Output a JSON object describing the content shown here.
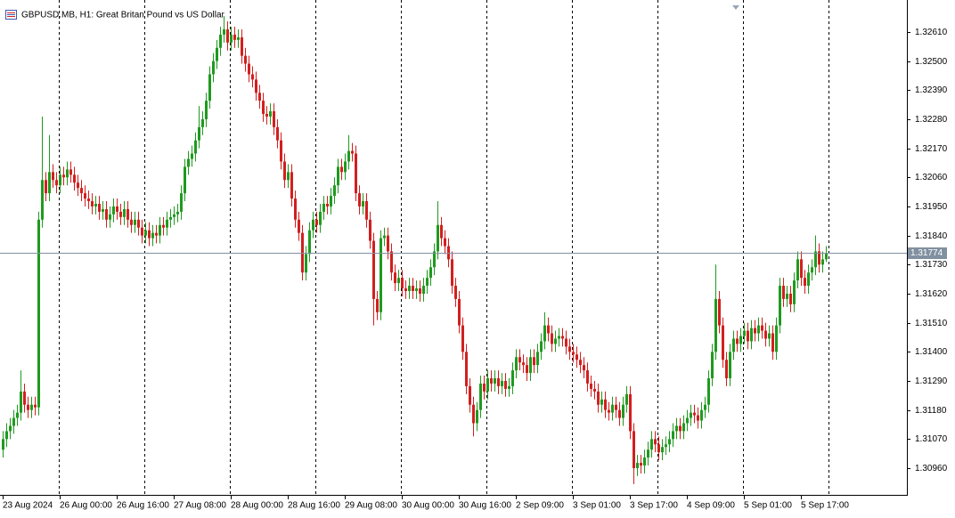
{
  "chart_data": {
    "type": "candlestick",
    "title": "GBPUSD.MB, H1:  Great Britan Pound vs US Dollar",
    "categories": [
      "23 Aug 2024",
      null,
      null,
      null,
      null,
      null,
      null,
      null,
      null,
      null,
      null,
      null,
      null,
      null,
      null,
      null,
      "26 Aug 00:00",
      null,
      null,
      null,
      null,
      null,
      null,
      null,
      null,
      null,
      null,
      null,
      null,
      null,
      null,
      null,
      "26 Aug 16:00",
      null,
      null,
      null,
      null,
      null,
      null,
      null,
      null,
      null,
      null,
      null,
      null,
      null,
      null,
      null,
      "27 Aug 08:00",
      null,
      null,
      null,
      null,
      null,
      null,
      null,
      null,
      null,
      null,
      null,
      null,
      null,
      null,
      null,
      "28 Aug 00:00",
      null,
      null,
      null,
      null,
      null,
      null,
      null,
      null,
      null,
      null,
      null,
      null,
      null,
      null,
      null,
      "28 Aug 16:00",
      null,
      null,
      null,
      null,
      null,
      null,
      null,
      null,
      null,
      null,
      null,
      null,
      null,
      null,
      null,
      "29 Aug 08:00",
      null,
      null,
      null,
      null,
      null,
      null,
      null,
      null,
      null,
      null,
      null,
      null,
      null,
      null,
      null,
      "30 Aug 00:00",
      null,
      null,
      null,
      null,
      null,
      null,
      null,
      null,
      null,
      null,
      null,
      null,
      null,
      null,
      null,
      "30 Aug 16:00",
      null,
      null,
      null,
      null,
      null,
      null,
      null,
      null,
      null,
      null,
      null,
      null,
      null,
      null,
      null,
      "2 Sep 09:00",
      null,
      null,
      null,
      null,
      null,
      null,
      null,
      null,
      null,
      null,
      null,
      null,
      null,
      null,
      null,
      "3 Sep 01:00",
      null,
      null,
      null,
      null,
      null,
      null,
      null,
      null,
      null,
      null,
      null,
      null,
      null,
      null,
      null,
      "3 Sep 17:00",
      null,
      null,
      null,
      null,
      null,
      null,
      null,
      null,
      null,
      null,
      null,
      null,
      null,
      null,
      null,
      "4 Sep 09:00",
      null,
      null,
      null,
      null,
      null,
      null,
      null,
      null,
      null,
      null,
      null,
      null,
      null,
      null,
      null,
      "5 Sep 01:00",
      null,
      null,
      null,
      null,
      null,
      null,
      null,
      null,
      null,
      null,
      null,
      null,
      null,
      null,
      null,
      "5 Sep 17:00",
      null,
      null,
      null,
      null,
      null,
      null,
      null
    ],
    "open": [
      1.3103,
      1.3107,
      1.311,
      1.3112,
      1.3115,
      1.3117,
      1.3125,
      1.312,
      1.3118,
      1.312,
      1.3119,
      1.319,
      1.3205,
      1.32,
      1.3208,
      1.3205,
      1.3203,
      1.3207,
      1.3206,
      1.3209,
      1.3207,
      1.3204,
      1.3202,
      1.32,
      1.3198,
      1.3197,
      1.3195,
      1.3196,
      1.3193,
      1.3194,
      1.319,
      1.3192,
      1.3195,
      1.3193,
      1.3191,
      1.3194,
      1.319,
      1.3188,
      1.319,
      1.3187,
      1.3184,
      1.3186,
      1.3183,
      1.3185,
      1.3184,
      1.3188,
      1.3187,
      1.319,
      1.3191,
      1.3192,
      1.3193,
      1.32,
      1.321,
      1.3213,
      1.3215,
      1.322,
      1.3225,
      1.3228,
      1.3235,
      1.3245,
      1.325,
      1.3255,
      1.326,
      1.3262,
      1.3257,
      1.326,
      1.3258,
      1.3259,
      1.3252,
      1.3249,
      1.3245,
      1.3243,
      1.3238,
      1.3235,
      1.323,
      1.3229,
      1.3231,
      1.3225,
      1.322,
      1.3212,
      1.3205,
      1.3208,
      1.3198,
      1.319,
      1.3185,
      1.317,
      1.3177,
      1.3186,
      1.319,
      1.3188,
      1.3193,
      1.3196,
      1.3195,
      1.3199,
      1.3203,
      1.321,
      1.3208,
      1.3212,
      1.3216,
      1.3215,
      1.32,
      1.3195,
      1.3197,
      1.319,
      1.3182,
      1.316,
      1.3155,
      1.3183,
      1.3184,
      1.3178,
      1.317,
      1.3166,
      1.3168,
      1.3164,
      1.3163,
      1.3165,
      1.3163,
      1.3164,
      1.3162,
      1.3165,
      1.3168,
      1.3172,
      1.3178,
      1.3188,
      1.3183,
      1.318,
      1.3175,
      1.3165,
      1.316,
      1.315,
      1.314,
      1.3127,
      1.312,
      1.3113,
      1.3118,
      1.3128,
      1.3125,
      1.313,
      1.3128,
      1.313,
      1.3127,
      1.3129,
      1.3126,
      1.3127,
      1.3133,
      1.3138,
      1.3136,
      1.3135,
      1.3132,
      1.3138,
      1.3135,
      1.314,
      1.3144,
      1.315,
      1.3147,
      1.3143,
      1.3145,
      1.3146,
      1.3145,
      1.3142,
      1.314,
      1.3139,
      1.3137,
      1.3135,
      1.3133,
      1.3128,
      1.3126,
      1.3125,
      1.312,
      1.3122,
      1.3118,
      1.3117,
      1.312,
      1.3118,
      1.3115,
      1.312,
      1.3124,
      1.311,
      1.3096,
      1.3098,
      1.3097,
      1.31,
      1.3103,
      1.3107,
      1.3105,
      1.3102,
      1.3104,
      1.3105,
      1.3107,
      1.311,
      1.3112,
      1.311,
      1.3113,
      1.3115,
      1.3117,
      1.3116,
      1.3114,
      1.3118,
      1.312,
      1.313,
      1.314,
      1.316,
      1.315,
      1.3137,
      1.313,
      1.314,
      1.3145,
      1.3143,
      1.3146,
      1.3148,
      1.3144,
      1.3149,
      1.3147,
      1.315,
      1.3148,
      1.3145,
      1.3147,
      1.314,
      1.315,
      1.3165,
      1.316,
      1.3162,
      1.3158,
      1.3167,
      1.3175,
      1.3168,
      1.3165,
      1.317,
      1.3172,
      1.3178,
      1.3173,
      1.3175
    ],
    "high": [
      1.311,
      1.3113,
      1.3115,
      1.3118,
      1.312,
      1.3133,
      1.3128,
      1.3123,
      1.3123,
      1.3123,
      1.3193,
      1.3229,
      1.3208,
      1.3222,
      1.3211,
      1.3208,
      1.321,
      1.321,
      1.3212,
      1.3212,
      1.321,
      1.3207,
      1.3205,
      1.3203,
      1.3201,
      1.32,
      1.3199,
      1.3199,
      1.3197,
      1.3197,
      1.3195,
      1.3198,
      1.3198,
      1.3196,
      1.3197,
      1.3197,
      1.3193,
      1.3193,
      1.3193,
      1.319,
      1.3189,
      1.3189,
      1.3188,
      1.3188,
      1.3191,
      1.3191,
      1.3193,
      1.3194,
      1.3195,
      1.3196,
      1.3203,
      1.3213,
      1.3216,
      1.3218,
      1.3223,
      1.3233,
      1.3231,
      1.3238,
      1.3248,
      1.3253,
      1.3258,
      1.3263,
      1.3267,
      1.3265,
      1.3263,
      1.3263,
      1.3262,
      1.3262,
      1.3255,
      1.3252,
      1.3248,
      1.3246,
      1.3241,
      1.3238,
      1.3233,
      1.3234,
      1.3234,
      1.3228,
      1.3223,
      1.3215,
      1.3211,
      1.3211,
      1.3201,
      1.3193,
      1.3188,
      1.318,
      1.3189,
      1.3193,
      1.3193,
      1.3196,
      1.3199,
      1.3199,
      1.3202,
      1.3206,
      1.3213,
      1.3213,
      1.3215,
      1.3222,
      1.3219,
      1.3218,
      1.3203,
      1.32,
      1.32,
      1.3193,
      1.3185,
      1.3163,
      1.3186,
      1.3187,
      1.3187,
      1.3181,
      1.3173,
      1.3171,
      1.3171,
      1.3167,
      1.3168,
      1.3168,
      1.3167,
      1.3167,
      1.3168,
      1.3171,
      1.3175,
      1.3181,
      1.3197,
      1.3191,
      1.3186,
      1.3183,
      1.3178,
      1.3168,
      1.3163,
      1.3153,
      1.3143,
      1.313,
      1.3123,
      1.3121,
      1.3131,
      1.3131,
      1.3133,
      1.3133,
      1.3133,
      1.3133,
      1.3132,
      1.3132,
      1.313,
      1.3136,
      1.3141,
      1.3141,
      1.3139,
      1.3138,
      1.3141,
      1.3141,
      1.3143,
      1.3147,
      1.3155,
      1.3153,
      1.315,
      1.3148,
      1.3149,
      1.3149,
      1.3148,
      1.3145,
      1.3143,
      1.3142,
      1.314,
      1.3138,
      1.3136,
      1.3131,
      1.3129,
      1.3128,
      1.3125,
      1.3125,
      1.3121,
      1.3123,
      1.3123,
      1.3121,
      1.3123,
      1.3127,
      1.3127,
      1.3113,
      1.3101,
      1.3101,
      1.3103,
      1.3106,
      1.311,
      1.311,
      1.3108,
      1.3107,
      1.3108,
      1.311,
      1.3113,
      1.3115,
      1.3115,
      1.3116,
      1.3118,
      1.312,
      1.312,
      1.3119,
      1.3121,
      1.3123,
      1.3133,
      1.3143,
      1.3173,
      1.3163,
      1.3153,
      1.314,
      1.3143,
      1.3148,
      1.3148,
      1.3149,
      1.3151,
      1.3151,
      1.3152,
      1.3152,
      1.3153,
      1.3153,
      1.3151,
      1.315,
      1.315,
      1.3153,
      1.3168,
      1.3168,
      1.3165,
      1.3165,
      1.317,
      1.3178,
      1.3178,
      1.3171,
      1.3173,
      1.3175,
      1.3184,
      1.3181,
      1.3178,
      1.318
    ],
    "low": [
      1.31,
      1.3104,
      1.3107,
      1.3109,
      1.3112,
      1.3114,
      1.3117,
      1.3115,
      1.3115,
      1.3116,
      1.3116,
      1.3187,
      1.3197,
      1.3197,
      1.3202,
      1.32,
      1.32,
      1.3203,
      1.3203,
      1.3204,
      1.3201,
      1.3199,
      1.3197,
      1.3195,
      1.3194,
      1.3192,
      1.3192,
      1.319,
      1.319,
      1.3187,
      1.3187,
      1.3189,
      1.319,
      1.3188,
      1.3188,
      1.3187,
      1.3185,
      1.3185,
      1.3184,
      1.3181,
      1.3181,
      1.318,
      1.318,
      1.3181,
      1.3181,
      1.3184,
      1.3184,
      1.3187,
      1.3188,
      1.3189,
      1.319,
      1.3197,
      1.3207,
      1.321,
      1.3212,
      1.3217,
      1.3222,
      1.3225,
      1.3232,
      1.3242,
      1.3247,
      1.3252,
      1.3257,
      1.3254,
      1.3254,
      1.3255,
      1.3255,
      1.3249,
      1.3246,
      1.3242,
      1.324,
      1.3235,
      1.3232,
      1.3227,
      1.3226,
      1.3226,
      1.3222,
      1.3217,
      1.3209,
      1.3202,
      1.3202,
      1.3195,
      1.3187,
      1.3182,
      1.3167,
      1.3167,
      1.3174,
      1.3183,
      1.3185,
      1.3185,
      1.319,
      1.3192,
      1.3192,
      1.3196,
      1.32,
      1.3205,
      1.3205,
      1.3209,
      1.3212,
      1.3197,
      1.3192,
      1.3192,
      1.3187,
      1.3179,
      1.315,
      1.3152,
      1.3152,
      1.318,
      1.3175,
      1.3167,
      1.3163,
      1.3163,
      1.3161,
      1.316,
      1.316,
      1.316,
      1.316,
      1.3159,
      1.3159,
      1.3162,
      1.3165,
      1.3169,
      1.3175,
      1.318,
      1.3177,
      1.3172,
      1.3162,
      1.3157,
      1.3147,
      1.3137,
      1.3124,
      1.3117,
      1.3108,
      1.311,
      1.3115,
      1.3122,
      1.3122,
      1.3125,
      1.3125,
      1.3124,
      1.3124,
      1.3123,
      1.3123,
      1.3124,
      1.313,
      1.3133,
      1.3132,
      1.3129,
      1.3129,
      1.3132,
      1.3132,
      1.3137,
      1.3141,
      1.3144,
      1.314,
      1.314,
      1.3142,
      1.3142,
      1.3139,
      1.3137,
      1.3136,
      1.3134,
      1.3132,
      1.313,
      1.3125,
      1.3123,
      1.3122,
      1.3117,
      1.3117,
      1.3115,
      1.3114,
      1.3114,
      1.3115,
      1.3112,
      1.3112,
      1.3117,
      1.3107,
      1.309,
      1.3093,
      1.3094,
      1.3094,
      1.3097,
      1.31,
      1.3102,
      1.3099,
      1.3099,
      1.3101,
      1.3102,
      1.3104,
      1.3107,
      1.3107,
      1.3107,
      1.311,
      1.3112,
      1.3113,
      1.3111,
      1.3111,
      1.3115,
      1.3117,
      1.3127,
      1.3137,
      1.3147,
      1.3134,
      1.3127,
      1.3127,
      1.3137,
      1.314,
      1.314,
      1.3143,
      1.3141,
      1.3141,
      1.3144,
      1.3144,
      1.3145,
      1.3142,
      1.3142,
      1.3137,
      1.3137,
      1.3147,
      1.3157,
      1.3157,
      1.3155,
      1.3155,
      1.3164,
      1.3165,
      1.3162,
      1.3162,
      1.3167,
      1.3169,
      1.317,
      1.317,
      1.3174
    ],
    "close": [
      1.3107,
      1.311,
      1.3112,
      1.3115,
      1.3117,
      1.3125,
      1.312,
      1.3118,
      1.312,
      1.3119,
      1.319,
      1.3205,
      1.32,
      1.3208,
      1.3205,
      1.3203,
      1.3207,
      1.3206,
      1.3209,
      1.3207,
      1.3204,
      1.3202,
      1.32,
      1.3198,
      1.3197,
      1.3195,
      1.3196,
      1.3193,
      1.3194,
      1.319,
      1.3192,
      1.3195,
      1.3193,
      1.3191,
      1.3194,
      1.319,
      1.3188,
      1.319,
      1.3187,
      1.3184,
      1.3186,
      1.3183,
      1.3185,
      1.3184,
      1.3188,
      1.3187,
      1.319,
      1.3191,
      1.3192,
      1.3193,
      1.32,
      1.321,
      1.3213,
      1.3215,
      1.322,
      1.3225,
      1.3228,
      1.3235,
      1.3245,
      1.325,
      1.3255,
      1.326,
      1.3262,
      1.3257,
      1.326,
      1.3258,
      1.3259,
      1.3252,
      1.3249,
      1.3245,
      1.3243,
      1.3238,
      1.3235,
      1.323,
      1.3229,
      1.3231,
      1.3225,
      1.322,
      1.3212,
      1.3205,
      1.3208,
      1.3198,
      1.319,
      1.3185,
      1.317,
      1.3177,
      1.3186,
      1.319,
      1.3188,
      1.3193,
      1.3196,
      1.3195,
      1.3199,
      1.3203,
      1.321,
      1.3208,
      1.3212,
      1.3216,
      1.3215,
      1.32,
      1.3195,
      1.3197,
      1.319,
      1.3182,
      1.316,
      1.3155,
      1.3183,
      1.3184,
      1.3178,
      1.317,
      1.3166,
      1.3168,
      1.3164,
      1.3163,
      1.3165,
      1.3163,
      1.3164,
      1.3162,
      1.3165,
      1.3168,
      1.3172,
      1.3178,
      1.3188,
      1.3183,
      1.318,
      1.3175,
      1.3165,
      1.316,
      1.315,
      1.314,
      1.3127,
      1.312,
      1.3113,
      1.3118,
      1.3128,
      1.3125,
      1.313,
      1.3128,
      1.313,
      1.3127,
      1.3129,
      1.3126,
      1.3127,
      1.3133,
      1.3138,
      1.3136,
      1.3135,
      1.3132,
      1.3138,
      1.3135,
      1.314,
      1.3144,
      1.315,
      1.3147,
      1.3143,
      1.3145,
      1.3146,
      1.3145,
      1.3142,
      1.314,
      1.3139,
      1.3137,
      1.3135,
      1.3133,
      1.3128,
      1.3126,
      1.3125,
      1.312,
      1.3122,
      1.3118,
      1.3117,
      1.312,
      1.3118,
      1.3115,
      1.312,
      1.3124,
      1.311,
      1.3096,
      1.3098,
      1.3097,
      1.31,
      1.3103,
      1.3107,
      1.3105,
      1.3102,
      1.3104,
      1.3105,
      1.3107,
      1.311,
      1.3112,
      1.311,
      1.3113,
      1.3115,
      1.3117,
      1.3116,
      1.3114,
      1.3118,
      1.312,
      1.313,
      1.314,
      1.316,
      1.315,
      1.3137,
      1.313,
      1.314,
      1.3145,
      1.3143,
      1.3146,
      1.3148,
      1.3144,
      1.3149,
      1.3147,
      1.315,
      1.3148,
      1.3145,
      1.3147,
      1.314,
      1.315,
      1.3165,
      1.316,
      1.3162,
      1.3158,
      1.3167,
      1.3175,
      1.3168,
      1.3165,
      1.317,
      1.3172,
      1.3178,
      1.3173,
      1.3175,
      1.31774
    ],
    "up_color": "#1f9a1f",
    "down_color": "#d21f1f",
    "current_price": 1.31774,
    "current_price_color": "#8190a0",
    "ylim": [
      1.30859,
      1.32731
    ],
    "yticks": [
      {
        "value": 1.3261,
        "label": "1.32610"
      },
      {
        "value": 1.325,
        "label": "1.32500"
      },
      {
        "value": 1.3239,
        "label": "1.32390"
      },
      {
        "value": 1.3228,
        "label": "1.32280"
      },
      {
        "value": 1.3217,
        "label": "1.32170"
      },
      {
        "value": 1.3206,
        "label": "1.32060"
      },
      {
        "value": 1.3195,
        "label": "1.31950"
      },
      {
        "value": 1.3184,
        "label": "1.31840"
      },
      {
        "value": 1.3173,
        "label": "1.31730"
      },
      {
        "value": 1.3162,
        "label": "1.31620"
      },
      {
        "value": 1.3151,
        "label": "1.31510"
      },
      {
        "value": 1.314,
        "label": "1.31400"
      },
      {
        "value": 1.3129,
        "label": "1.31290"
      },
      {
        "value": 1.3118,
        "label": "1.31180"
      },
      {
        "value": 1.3107,
        "label": "1.31070"
      },
      {
        "value": 1.3096,
        "label": "1.30960"
      }
    ],
    "grid": true
  }
}
